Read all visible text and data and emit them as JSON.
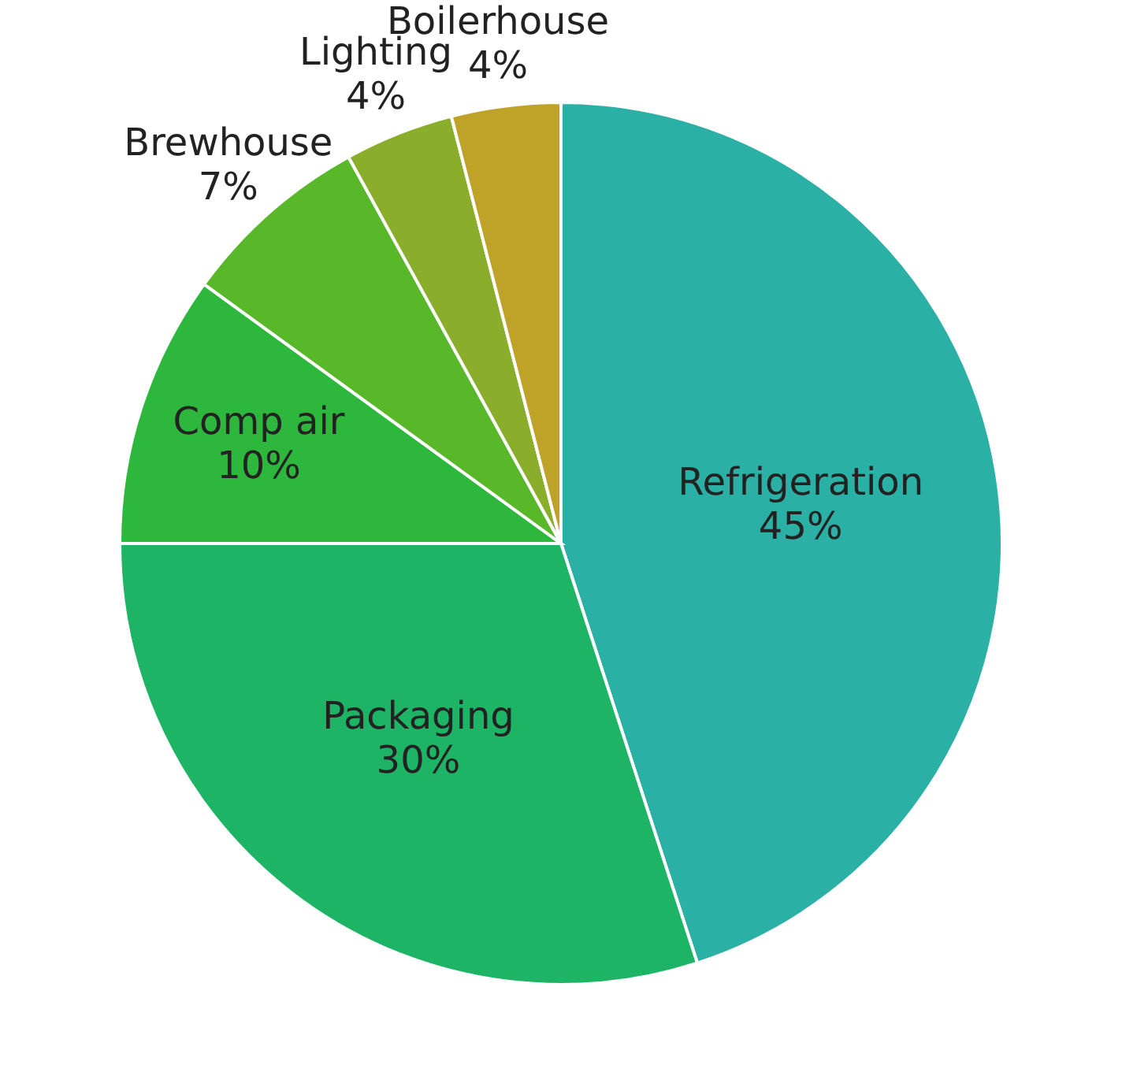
{
  "chart_data": {
    "type": "pie",
    "categories": [
      "Refrigeration",
      "Packaging",
      "Comp air",
      "Brewhouse",
      "Lighting",
      "Boilerhouse"
    ],
    "values": [
      45,
      30,
      10,
      7,
      4,
      4
    ],
    "colors": [
      "#2ab0a5",
      "#1db565",
      "#2db83d",
      "#58b82a",
      "#8aad2c",
      "#bfa228"
    ],
    "value_labels": [
      "45%",
      "30%",
      "10%",
      "7%",
      "4%",
      "4%"
    ]
  }
}
